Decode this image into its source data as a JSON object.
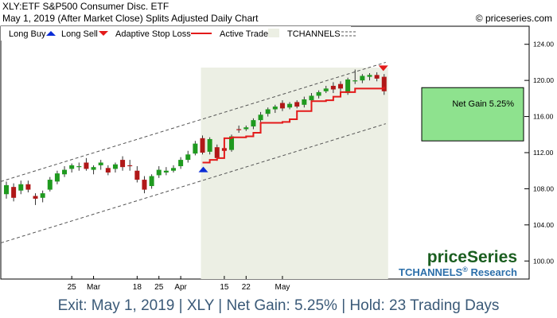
{
  "header": {
    "title": "XLY:ETF S&P500 Consumer Disc. ETF",
    "subtitle": "May 1, 2019 (After Market Close)  Splits Adjusted Daily Chart",
    "copyright": "© priceseries.com"
  },
  "legend": {
    "long_buy": "Long Buy",
    "long_sell": "Long Sell",
    "adaptive_stop": "Adaptive Stop Loss",
    "active_trade": "Active Trade",
    "tchannels": "TCHANNELS"
  },
  "net_gain_label": "Net Gain 5.25%",
  "brand": {
    "name": "priceSeries",
    "tchannels": "TCHANNELS",
    "reg": "®",
    "research": "Research"
  },
  "footer": "Exit: May 1, 2019 | XLY | Net Gain: 5.25% | Hold: 23 Trading Days",
  "colors": {
    "up": "#1f9a1f",
    "down": "#b01818",
    "stop": "#e31a1a",
    "active_trade": "#ecefe4",
    "gain_box": "#8ee28e",
    "brand_green": "#1b5e20",
    "brand_blue": "#2c6faa",
    "footer_text": "#3b5a78"
  },
  "chart_data": {
    "type": "candlestick",
    "ylim": [
      98,
      126
    ],
    "y_ticks": [
      "100.00",
      "104.00",
      "108.00",
      "112.00",
      "116.00",
      "120.00",
      "124.00"
    ],
    "x_ticks": [
      {
        "label": "25",
        "index": 9
      },
      {
        "label": "Mar",
        "index": 12
      },
      {
        "label": "18",
        "index": 18
      },
      {
        "label": "25",
        "index": 21
      },
      {
        "label": "Apr",
        "index": 24
      },
      {
        "label": "15",
        "index": 30
      },
      {
        "label": "22",
        "index": 33
      },
      {
        "label": "May",
        "index": 38
      }
    ],
    "candles": [
      {
        "o": 107.4,
        "h": 108.8,
        "l": 106.9,
        "c": 108.4
      },
      {
        "o": 108.2,
        "h": 108.6,
        "l": 106.6,
        "c": 107.0
      },
      {
        "o": 107.8,
        "h": 108.9,
        "l": 107.4,
        "c": 108.5
      },
      {
        "o": 108.5,
        "h": 108.9,
        "l": 107.6,
        "c": 107.9
      },
      {
        "o": 107.2,
        "h": 107.5,
        "l": 106.2,
        "c": 106.9
      },
      {
        "o": 107.0,
        "h": 107.8,
        "l": 106.5,
        "c": 107.5
      },
      {
        "o": 107.9,
        "h": 109.3,
        "l": 107.7,
        "c": 109.0
      },
      {
        "o": 108.8,
        "h": 110.0,
        "l": 108.5,
        "c": 109.7
      },
      {
        "o": 109.6,
        "h": 110.5,
        "l": 109.3,
        "c": 110.1
      },
      {
        "o": 110.2,
        "h": 110.8,
        "l": 109.8,
        "c": 110.6
      },
      {
        "o": 110.4,
        "h": 110.9,
        "l": 110.0,
        "c": 110.5
      },
      {
        "o": 110.9,
        "h": 111.4,
        "l": 110.0,
        "c": 110.2
      },
      {
        "o": 110.1,
        "h": 110.6,
        "l": 109.6,
        "c": 110.4
      },
      {
        "o": 110.6,
        "h": 111.2,
        "l": 110.1,
        "c": 110.9
      },
      {
        "o": 110.3,
        "h": 110.6,
        "l": 109.5,
        "c": 109.8
      },
      {
        "o": 110.2,
        "h": 110.9,
        "l": 109.8,
        "c": 110.7
      },
      {
        "o": 111.2,
        "h": 111.6,
        "l": 110.0,
        "c": 110.4
      },
      {
        "o": 110.6,
        "h": 111.2,
        "l": 110.0,
        "c": 110.5
      },
      {
        "o": 110.0,
        "h": 110.5,
        "l": 108.7,
        "c": 109.0
      },
      {
        "o": 109.0,
        "h": 109.4,
        "l": 107.5,
        "c": 107.9
      },
      {
        "o": 108.3,
        "h": 109.6,
        "l": 108.0,
        "c": 109.4
      },
      {
        "o": 109.5,
        "h": 110.5,
        "l": 109.2,
        "c": 110.1
      },
      {
        "o": 109.8,
        "h": 110.4,
        "l": 109.5,
        "c": 110.0
      },
      {
        "o": 110.0,
        "h": 110.6,
        "l": 109.8,
        "c": 110.3
      },
      {
        "o": 110.5,
        "h": 111.5,
        "l": 110.2,
        "c": 111.2
      },
      {
        "o": 111.2,
        "h": 112.2,
        "l": 110.9,
        "c": 111.8
      },
      {
        "o": 111.9,
        "h": 113.3,
        "l": 111.7,
        "c": 113.0
      },
      {
        "o": 113.6,
        "h": 113.9,
        "l": 111.8,
        "c": 112.0
      },
      {
        "o": 112.1,
        "h": 113.7,
        "l": 111.8,
        "c": 113.5
      },
      {
        "o": 112.6,
        "h": 112.9,
        "l": 111.1,
        "c": 111.4
      },
      {
        "o": 112.5,
        "h": 112.9,
        "l": 111.6,
        "c": 112.2
      },
      {
        "o": 112.3,
        "h": 114.0,
        "l": 112.1,
        "c": 113.8
      },
      {
        "o": 114.6,
        "h": 115.0,
        "l": 114.2,
        "c": 114.5
      },
      {
        "o": 114.6,
        "h": 115.0,
        "l": 114.4,
        "c": 114.8
      },
      {
        "o": 114.9,
        "h": 115.8,
        "l": 114.6,
        "c": 115.6
      },
      {
        "o": 115.6,
        "h": 116.5,
        "l": 115.4,
        "c": 116.2
      },
      {
        "o": 116.3,
        "h": 117.0,
        "l": 116.0,
        "c": 116.8
      },
      {
        "o": 116.8,
        "h": 117.3,
        "l": 116.4,
        "c": 117.1
      },
      {
        "o": 117.5,
        "h": 117.8,
        "l": 116.6,
        "c": 116.9
      },
      {
        "o": 117.0,
        "h": 117.6,
        "l": 116.8,
        "c": 117.4
      },
      {
        "o": 117.6,
        "h": 117.8,
        "l": 116.9,
        "c": 117.1
      },
      {
        "o": 117.3,
        "h": 118.2,
        "l": 117.0,
        "c": 117.9
      },
      {
        "o": 117.8,
        "h": 118.6,
        "l": 117.6,
        "c": 118.3
      },
      {
        "o": 118.3,
        "h": 118.9,
        "l": 118.0,
        "c": 118.7
      },
      {
        "o": 118.8,
        "h": 119.4,
        "l": 118.6,
        "c": 119.1
      },
      {
        "o": 119.4,
        "h": 119.8,
        "l": 118.6,
        "c": 119.0
      },
      {
        "o": 119.6,
        "h": 119.9,
        "l": 118.8,
        "c": 119.1
      },
      {
        "o": 118.6,
        "h": 120.3,
        "l": 118.4,
        "c": 120.1
      },
      {
        "o": 119.9,
        "h": 121.2,
        "l": 119.6,
        "c": 120.0
      },
      {
        "o": 120.0,
        "h": 120.7,
        "l": 119.7,
        "c": 120.5
      },
      {
        "o": 120.4,
        "h": 120.8,
        "l": 120.0,
        "c": 120.6
      },
      {
        "o": 120.6,
        "h": 120.9,
        "l": 119.9,
        "c": 120.2
      },
      {
        "o": 120.4,
        "h": 120.7,
        "l": 118.4,
        "c": 118.8
      }
    ],
    "stop_loss": [
      {
        "i": 27,
        "v": 110.9
      },
      {
        "i": 28,
        "v": 111.2
      },
      {
        "i": 29,
        "v": 111.4
      },
      {
        "i": 30,
        "v": 113.6
      },
      {
        "i": 31,
        "v": 113.7
      },
      {
        "i": 33,
        "v": 113.8
      },
      {
        "i": 34,
        "v": 114.2
      },
      {
        "i": 35,
        "v": 115.3
      },
      {
        "i": 38,
        "v": 115.4
      },
      {
        "i": 39,
        "v": 115.7
      },
      {
        "i": 40,
        "v": 116.6
      },
      {
        "i": 41,
        "v": 116.6
      },
      {
        "i": 42,
        "v": 117.7
      },
      {
        "i": 43,
        "v": 117.7
      },
      {
        "i": 44,
        "v": 117.8
      },
      {
        "i": 45,
        "v": 118.2
      },
      {
        "i": 46,
        "v": 118.7
      },
      {
        "i": 47,
        "v": 118.7
      },
      {
        "i": 48,
        "v": 119.1
      },
      {
        "i": 52,
        "v": 119.3
      }
    ],
    "channel_upper": {
      "start": [
        0,
        108.8
      ],
      "end": [
        52,
        122.0
      ]
    },
    "channel_lower": {
      "start": [
        0,
        102.0
      ],
      "end": [
        52,
        115.2
      ]
    },
    "active_trade": {
      "start_index": 27,
      "end_index": 52
    },
    "buy_signal": {
      "index": 27,
      "price": 110.1
    },
    "sell_signal": {
      "index": 52,
      "price": 121.3
    },
    "net_gain_box": {
      "entry": 113.3,
      "exit": 119.2
    }
  }
}
